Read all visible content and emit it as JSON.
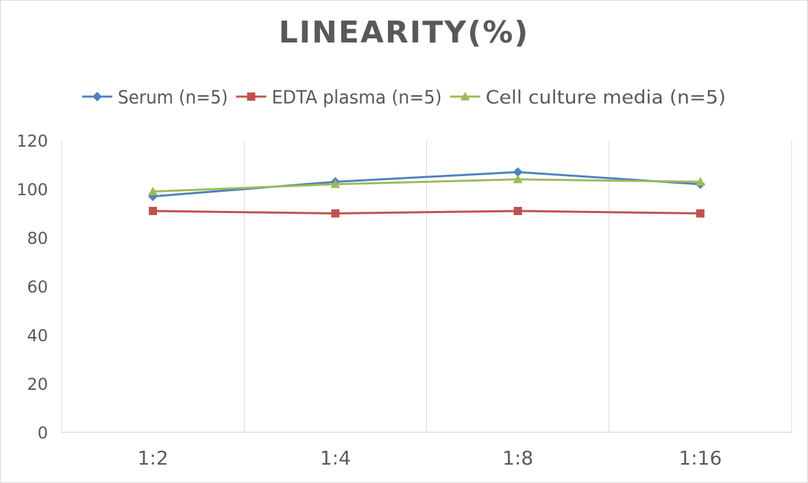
{
  "chart_data": {
    "type": "line",
    "title": "LINEARITY(%)",
    "xlabel": "",
    "ylabel": "",
    "categories": [
      "1:2",
      "1:4",
      "1:8",
      "1:16"
    ],
    "ylim": [
      0,
      120
    ],
    "yticks": [
      0,
      20,
      40,
      60,
      80,
      100,
      120
    ],
    "grid": "vertical",
    "legend_position": "top",
    "series": [
      {
        "name": "Serum (n=5)",
        "values": [
          97,
          103,
          107,
          102
        ],
        "color": "#4f81bd",
        "marker": "diamond"
      },
      {
        "name": "EDTA plasma (n=5)",
        "values": [
          91,
          90,
          91,
          90
        ],
        "color": "#c0504d",
        "marker": "square"
      },
      {
        "name": "Cell culture media (n=5)",
        "values": [
          99,
          102,
          104,
          103
        ],
        "color": "#9bbb59",
        "marker": "triangle"
      }
    ]
  }
}
